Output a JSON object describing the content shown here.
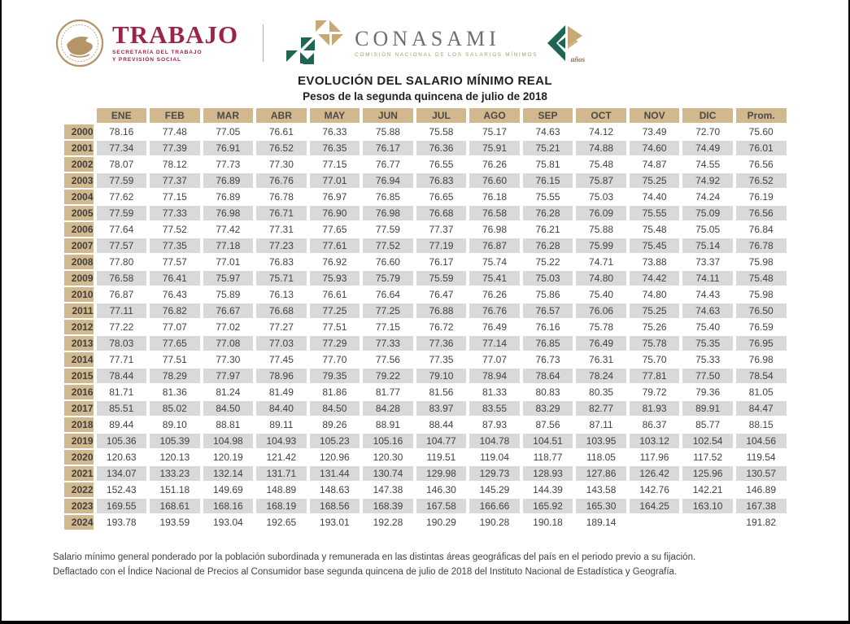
{
  "page": {
    "title_main": "EVOLUCIÓN DEL SALARIO MÍNIMO REAL",
    "title_sub": "Pesos de la segunda quincena de julio de 2018"
  },
  "header": {
    "trabajo": {
      "name": "TRABAJO",
      "subtitle_line1": "SECRETARÍA DEL TRABAJO",
      "subtitle_line2": "Y PREVISIÓN SOCIAL"
    },
    "conasami": {
      "name": "CONASAMI",
      "subtitle": "COMISIÓN NACIONAL DE LOS SALARIOS MÍNIMOS"
    },
    "anniversary": {
      "label": "años"
    }
  },
  "colors": {
    "maroon": "#9d2449",
    "gold_seal": "#b59467",
    "tan_header": "#d2b88e",
    "row_gray": "#d9d9d9",
    "logo_gray": "#6d6e71",
    "triangle_green": "#1e6653",
    "triangle_tan": "#c9a876",
    "text_dark": "#414042"
  },
  "chart_data": {
    "type": "table",
    "title": "EVOLUCIÓN DEL SALARIO MÍNIMO REAL",
    "subtitle": "Pesos de la segunda quincena de julio de 2018",
    "columns": [
      "ENE",
      "FEB",
      "MAR",
      "ABR",
      "MAY",
      "JUN",
      "JUL",
      "AGO",
      "SEP",
      "OCT",
      "NOV",
      "DIC",
      "Prom."
    ],
    "rows": [
      {
        "year": "2000",
        "values": [
          "78.16",
          "77.48",
          "77.05",
          "76.61",
          "76.33",
          "75.88",
          "75.58",
          "75.17",
          "74.63",
          "74.12",
          "73.49",
          "72.70",
          "75.60"
        ]
      },
      {
        "year": "2001",
        "values": [
          "77.34",
          "77.39",
          "76.91",
          "76.52",
          "76.35",
          "76.17",
          "76.36",
          "75.91",
          "75.21",
          "74.88",
          "74.60",
          "74.49",
          "76.01"
        ]
      },
      {
        "year": "2002",
        "values": [
          "78.07",
          "78.12",
          "77.73",
          "77.30",
          "77.15",
          "76.77",
          "76.55",
          "76.26",
          "75.81",
          "75.48",
          "74.87",
          "74.55",
          "76.56"
        ]
      },
      {
        "year": "2003",
        "values": [
          "77.59",
          "77.37",
          "76.89",
          "76.76",
          "77.01",
          "76.94",
          "76.83",
          "76.60",
          "76.15",
          "75.87",
          "75.25",
          "74.92",
          "76.52"
        ]
      },
      {
        "year": "2004",
        "values": [
          "77.62",
          "77.15",
          "76.89",
          "76.78",
          "76.97",
          "76.85",
          "76.65",
          "76.18",
          "75.55",
          "75.03",
          "74.40",
          "74.24",
          "76.19"
        ]
      },
      {
        "year": "2005",
        "values": [
          "77.59",
          "77.33",
          "76.98",
          "76.71",
          "76.90",
          "76.98",
          "76.68",
          "76.58",
          "76.28",
          "76.09",
          "75.55",
          "75.09",
          "76.56"
        ]
      },
      {
        "year": "2006",
        "values": [
          "77.64",
          "77.52",
          "77.42",
          "77.31",
          "77.65",
          "77.59",
          "77.37",
          "76.98",
          "76.21",
          "75.88",
          "75.48",
          "75.05",
          "76.84"
        ]
      },
      {
        "year": "2007",
        "values": [
          "77.57",
          "77.35",
          "77.18",
          "77.23",
          "77.61",
          "77.52",
          "77.19",
          "76.87",
          "76.28",
          "75.99",
          "75.45",
          "75.14",
          "76.78"
        ]
      },
      {
        "year": "2008",
        "values": [
          "77.80",
          "77.57",
          "77.01",
          "76.83",
          "76.92",
          "76.60",
          "76.17",
          "75.74",
          "75.22",
          "74.71",
          "73.88",
          "73.37",
          "75.98"
        ]
      },
      {
        "year": "2009",
        "values": [
          "76.58",
          "76.41",
          "75.97",
          "75.71",
          "75.93",
          "75.79",
          "75.59",
          "75.41",
          "75.03",
          "74.80",
          "74.42",
          "74.11",
          "75.48"
        ]
      },
      {
        "year": "2010",
        "values": [
          "76.87",
          "76.43",
          "75.89",
          "76.13",
          "76.61",
          "76.64",
          "76.47",
          "76.26",
          "75.86",
          "75.40",
          "74.80",
          "74.43",
          "75.98"
        ]
      },
      {
        "year": "2011",
        "values": [
          "77.11",
          "76.82",
          "76.67",
          "76.68",
          "77.25",
          "77.25",
          "76.88",
          "76.76",
          "76.57",
          "76.06",
          "75.25",
          "74.63",
          "76.50"
        ]
      },
      {
        "year": "2012",
        "values": [
          "77.22",
          "77.07",
          "77.02",
          "77.27",
          "77.51",
          "77.15",
          "76.72",
          "76.49",
          "76.16",
          "75.78",
          "75.26",
          "75.40",
          "76.59"
        ]
      },
      {
        "year": "2013",
        "values": [
          "78.03",
          "77.65",
          "77.08",
          "77.03",
          "77.29",
          "77.33",
          "77.36",
          "77.14",
          "76.85",
          "76.49",
          "75.78",
          "75.35",
          "76.95"
        ]
      },
      {
        "year": "2014",
        "values": [
          "77.71",
          "77.51",
          "77.30",
          "77.45",
          "77.70",
          "77.56",
          "77.35",
          "77.07",
          "76.73",
          "76.31",
          "75.70",
          "75.33",
          "76.98"
        ]
      },
      {
        "year": "2015",
        "values": [
          "78.44",
          "78.29",
          "77.97",
          "78.96",
          "79.35",
          "79.22",
          "79.10",
          "78.94",
          "78.64",
          "78.24",
          "77.81",
          "77.50",
          "78.54"
        ]
      },
      {
        "year": "2016",
        "values": [
          "81.71",
          "81.36",
          "81.24",
          "81.49",
          "81.86",
          "81.77",
          "81.56",
          "81.33",
          "80.83",
          "80.35",
          "79.72",
          "79.36",
          "81.05"
        ]
      },
      {
        "year": "2017",
        "values": [
          "85.51",
          "85.02",
          "84.50",
          "84.40",
          "84.50",
          "84.28",
          "83.97",
          "83.55",
          "83.29",
          "82.77",
          "81.93",
          "89.91",
          "84.47"
        ]
      },
      {
        "year": "2018",
        "values": [
          "89.44",
          "89.10",
          "88.81",
          "89.11",
          "89.26",
          "88.91",
          "88.44",
          "87.93",
          "87.56",
          "87.11",
          "86.37",
          "85.77",
          "88.15"
        ]
      },
      {
        "year": "2019",
        "values": [
          "105.36",
          "105.39",
          "104.98",
          "104.93",
          "105.23",
          "105.16",
          "104.77",
          "104.78",
          "104.51",
          "103.95",
          "103.12",
          "102.54",
          "104.56"
        ]
      },
      {
        "year": "2020",
        "values": [
          "120.63",
          "120.13",
          "120.19",
          "121.42",
          "120.96",
          "120.30",
          "119.51",
          "119.04",
          "118.77",
          "118.05",
          "117.96",
          "117.52",
          "119.54"
        ]
      },
      {
        "year": "2021",
        "values": [
          "134.07",
          "133.23",
          "132.14",
          "131.71",
          "131.44",
          "130.74",
          "129.98",
          "129.73",
          "128.93",
          "127.86",
          "126.42",
          "125.96",
          "130.57"
        ]
      },
      {
        "year": "2022",
        "values": [
          "152.43",
          "151.18",
          "149.69",
          "148.89",
          "148.63",
          "147.38",
          "146.30",
          "145.29",
          "144.39",
          "143.58",
          "142.76",
          "142.21",
          "146.89"
        ]
      },
      {
        "year": "2023",
        "values": [
          "169.55",
          "168.61",
          "168.16",
          "168.19",
          "168.56",
          "168.39",
          "167.58",
          "166.66",
          "165.92",
          "165.30",
          "164.25",
          "163.10",
          "167.38"
        ]
      },
      {
        "year": "2024",
        "values": [
          "193.78",
          "193.59",
          "193.04",
          "192.65",
          "193.01",
          "192.28",
          "190.29",
          "190.28",
          "190.18",
          "189.14",
          "",
          "",
          "191.82"
        ]
      }
    ]
  },
  "footnote": {
    "line1": "Salario mínimo general ponderado por la población subordinada y remunerada en las distintas áreas geográficas del país en el periodo previo a su fijación.",
    "line2": "Deflactado con el Índice Nacional de Precios al Consumidor base segunda quincena de julio de 2018 del Instituto Nacional de Estadística y Geografía."
  }
}
